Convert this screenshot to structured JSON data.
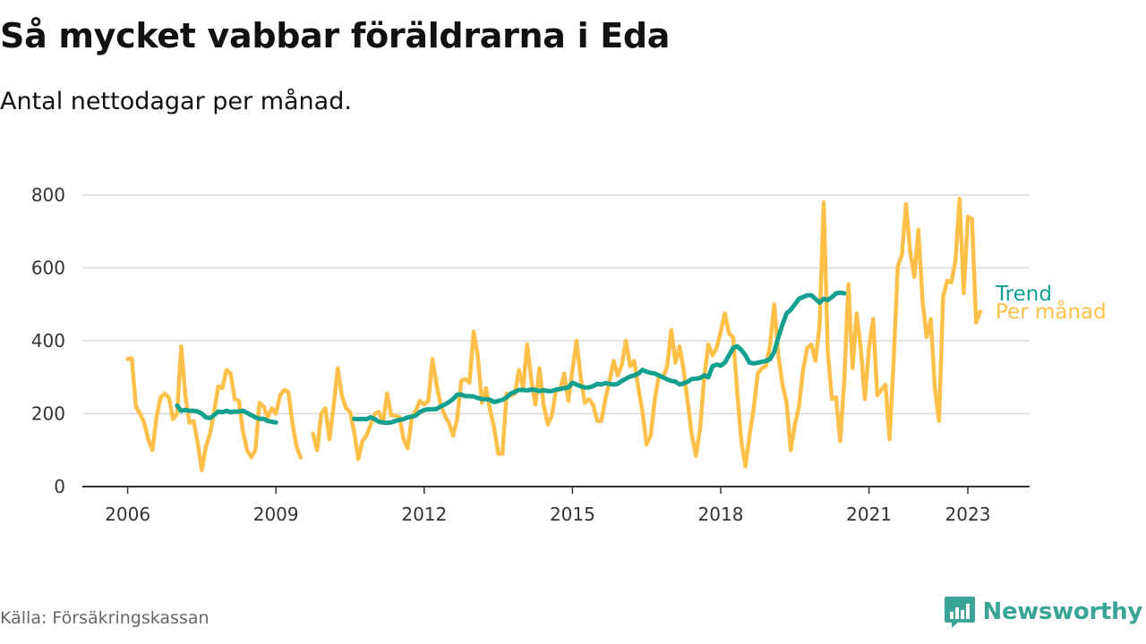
{
  "header": {
    "title": "Så mycket vabbar föräldrarna i Eda",
    "subtitle": "Antal nettodagar per månad."
  },
  "footer": {
    "source": "Källa: Försäkringskassan",
    "brand": "Newsworthy",
    "brand_color": "#3aa597"
  },
  "chart_data": {
    "type": "line",
    "title": "Så mycket vabbar föräldrarna i Eda",
    "subtitle": "Antal nettodagar per månad.",
    "xlabel": "",
    "ylabel": "",
    "ylim": [
      0,
      800
    ],
    "yticks": [
      0,
      200,
      400,
      600,
      800
    ],
    "xlim": [
      "2005-02",
      "2024-04"
    ],
    "xticks": [
      "2006",
      "2009",
      "2012",
      "2015",
      "2018",
      "2021",
      "2023"
    ],
    "grid": "horizontal",
    "legend": "inline at line ends (right)",
    "series": [
      {
        "name": "Per månad",
        "color": "#ffc04a",
        "segments": [
          {
            "start": "2006-01",
            "values": [
              350,
              352,
              220,
              200,
              175,
              130,
              100,
              190,
              245,
              255,
              245,
              185,
              200,
              385,
              250,
              175,
              180,
              120,
              45,
              110,
              145,
              205,
              275,
              270,
              320,
              310,
              240,
              235,
              150,
              100,
              80,
              100,
              230,
              220,
              190,
              215,
              200,
              250,
              265,
              260,
              175,
              110,
              80
            ]
          },
          {
            "start": "2009-10",
            "values": [
              145,
              100,
              200,
              215,
              130,
              220,
              325,
              250,
              215,
              205,
              150,
              75,
              125,
              140,
              170,
              200,
              205,
              175,
              255,
              195,
              195,
              190,
              130,
              105,
              190,
              210,
              235,
              225,
              235,
              350,
              280,
              225,
              195,
              175,
              140,
              185,
              290,
              295,
              285,
              425,
              360,
              230,
              270,
              210,
              160,
              90,
              90,
              255,
              250,
              255,
              320,
              270,
              390,
              295,
              225,
              325,
              225,
              170,
              195,
              265,
              265,
              310,
              235,
              320,
              400,
              300,
              230,
              240,
              225,
              180,
              180,
              240,
              290,
              345,
              305,
              335,
              400,
              330,
              345,
              270,
              205,
              115,
              140,
              240,
              305,
              300,
              330,
              430,
              340,
              385,
              320,
              230,
              140,
              85,
              160,
              300,
              390,
              360,
              380,
              425,
              475,
              420,
              410,
              260,
              125,
              55,
              140,
              215,
              310,
              325,
              330,
              390,
              500,
              360,
              280,
              230,
              100,
              170,
              220,
              320,
              380,
              390,
              345,
              440,
              780,
              370,
              240,
              245,
              125,
              290,
              555,
              325,
              475,
              380,
              240,
              380,
              460,
              250,
              265,
              280,
              130,
              350,
              605,
              635,
              775,
              645,
              575,
              705,
              510,
              410,
              460,
              270,
              180,
              520,
              565,
              560,
              620,
              790,
              530,
              740,
              735,
              450,
              480
            ]
          }
        ]
      },
      {
        "name": "Trend",
        "color": "#13a08e",
        "segments": [
          {
            "start": "2007-01",
            "values": [
              222,
              208,
              210,
              208,
              208,
              206,
              200,
              190,
              188,
              196,
              206,
              204,
              208,
              204,
              206,
              206,
              208,
              202,
              196,
              190,
              186,
              186,
              180,
              178,
              176
            ]
          },
          {
            "start": "2010-08",
            "values": [
              186,
              185,
              186,
              185,
              190,
              185,
              178,
              176,
              175,
              176,
              180,
              183,
              185,
              190,
              192,
              195,
              205,
              210,
              212,
              212,
              213,
              220,
              225,
              232,
              240,
              252,
              252,
              248,
              248,
              247,
              243,
              240,
              240,
              238,
              232,
              235,
              238,
              245,
              255,
              260,
              265,
              265,
              264,
              266,
              265,
              262,
              264,
              262,
              262,
              266,
              268,
              270,
              272,
              285,
              280,
              275,
              272,
              272,
              275,
              282,
              280,
              284,
              282,
              280,
              282,
              290,
              296,
              302,
              305,
              310,
              320,
              315,
              312,
              310,
              305,
              300,
              294,
              290,
              288,
              280,
              283,
              288,
              295,
              296,
              298,
              305,
              300,
              330,
              335,
              332,
              340,
              360,
              380,
              385,
              375,
              360,
              340,
              338,
              340,
              342,
              345,
              350,
              370,
              410,
              445,
              475,
              485,
              500,
              515,
              520,
              525,
              525,
              515,
              505,
              515,
              512,
              520,
              530,
              532,
              530
            ]
          }
        ]
      }
    ]
  }
}
